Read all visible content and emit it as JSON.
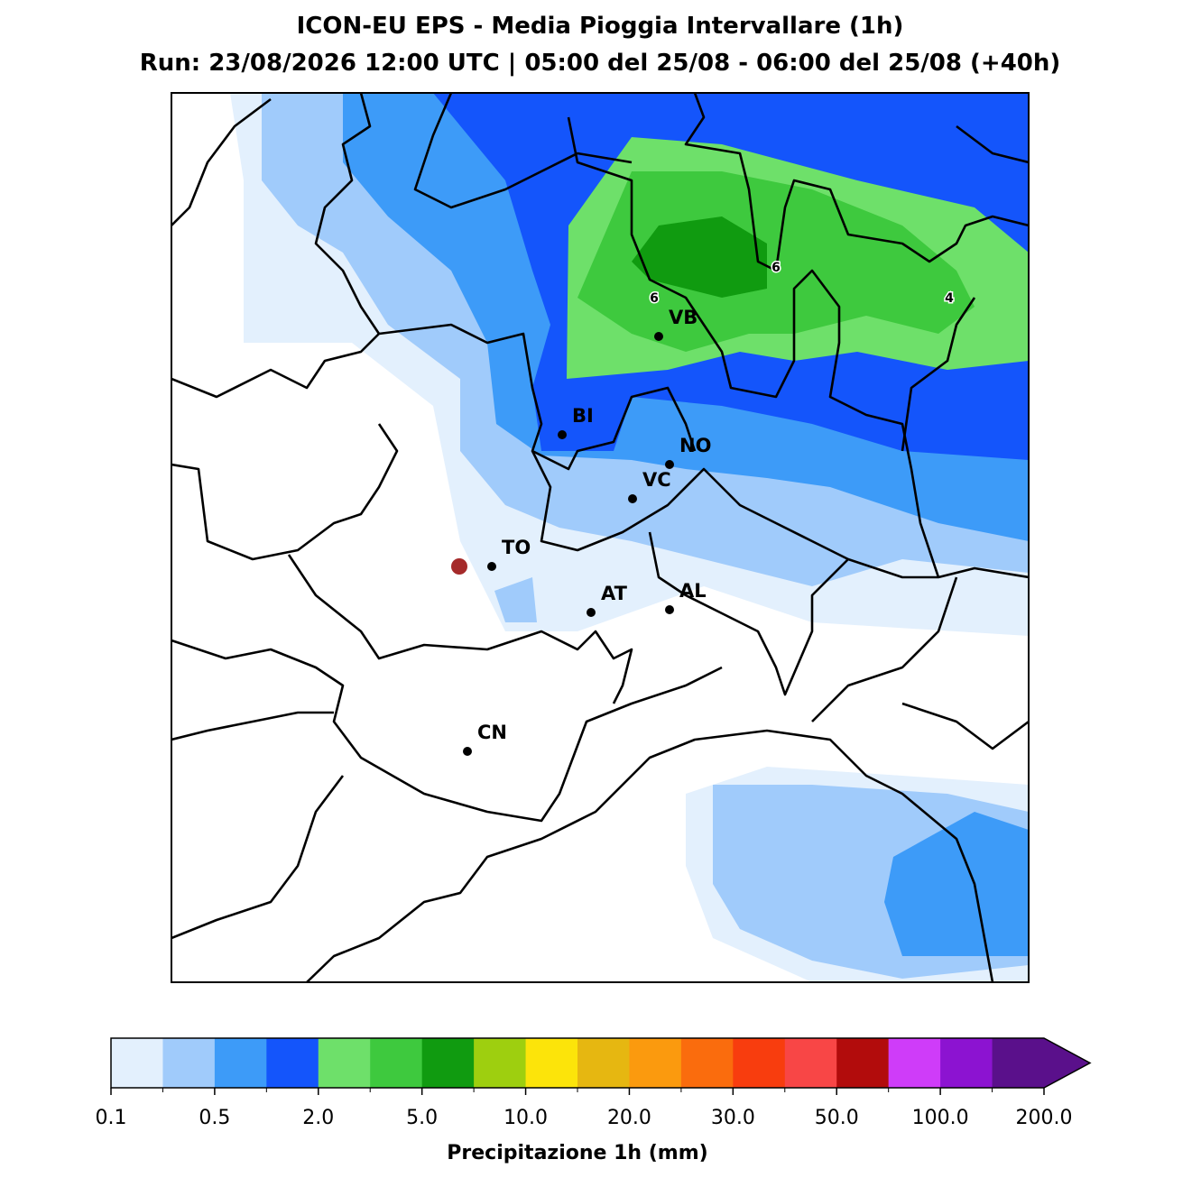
{
  "title": "ICON-EU EPS - Media Pioggia Intervallare (1h)",
  "subtitle": "Run: 23/08/2026 12:00 UTC | 05:00 del 25/08 - 06:00 del 25/08 (+40h)",
  "cities": [
    "VB",
    "BI",
    "NO",
    "VC",
    "TO",
    "AT",
    "AL",
    "CN"
  ],
  "contour_labels": [
    "6",
    "6",
    "4"
  ],
  "colorbar": {
    "label": "Precipitazione 1h (mm)",
    "colors": [
      "#e3f0fd",
      "#a0cbfb",
      "#3d9bf8",
      "#1455fb",
      "#6ee06a",
      "#3ec93e",
      "#109b10",
      "#9ecf0f",
      "#fce40a",
      "#e6b711",
      "#fb9a0e",
      "#fa6c0d",
      "#f83d0e",
      "#f84646",
      "#b20c0c",
      "#cf3cf9",
      "#8c13d1",
      "#5a108b"
    ],
    "ticks": [
      0.1,
      0.5,
      {
        "value": 2,
        "label": "2.0"
      },
      {
        "value": 5,
        "label": "5.0"
      },
      {
        "value": 10,
        "label": "10.0"
      },
      {
        "value": 20,
        "label": "20.0"
      },
      {
        "value": 30,
        "label": "30.0"
      },
      {
        "value": 50,
        "label": "50.0"
      },
      {
        "value": 100,
        "label": "100.0"
      },
      {
        "value": 200,
        "label": "200.0"
      }
    ]
  }
}
